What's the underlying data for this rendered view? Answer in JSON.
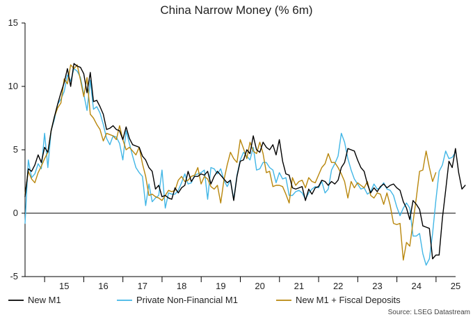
{
  "chart_data": {
    "type": "line",
    "title": "China Narrow Money (% 6m)",
    "xlabel": "",
    "ylabel": "",
    "x_start": 2014.5,
    "x_step": 0.0833,
    "xlim": [
      2014.5,
      2025.5
    ],
    "ylim": [
      -5,
      15
    ],
    "yticks": [
      -5,
      0,
      5,
      10,
      15
    ],
    "xtick_labels": [
      "15",
      "16",
      "17",
      "18",
      "19",
      "20",
      "21",
      "22",
      "23",
      "24",
      "25"
    ],
    "grid": false,
    "legend_position": "bottom",
    "source": "Source: LSEG Datastream",
    "series": [
      {
        "name": "New M1",
        "color": "#000000",
        "values": [
          1.3,
          3.5,
          3.3,
          3.8,
          4.6,
          4.0,
          5.2,
          4.8,
          6.5,
          7.6,
          8.6,
          9.5,
          10.3,
          11.4,
          10.0,
          11.8,
          11.6,
          11.5,
          11.0,
          9.5,
          11.1,
          8.8,
          8.9,
          8.4,
          7.8,
          6.6,
          6.7,
          6.9,
          6.6,
          6.5,
          5.8,
          6.8,
          5.9,
          5.4,
          5.3,
          5.2,
          4.5,
          4.2,
          3.6,
          3.3,
          1.9,
          2.2,
          1.3,
          1.4,
          1.2,
          1.1,
          2.0,
          1.6,
          2.0,
          2.2,
          3.3,
          2.5,
          2.9,
          2.9,
          3.1,
          3.0,
          3.3,
          2.3,
          2.9,
          3.3,
          3.0,
          2.7,
          2.4,
          2.6,
          1.0,
          2.9,
          4.1,
          4.2,
          5.0,
          4.7,
          6.1,
          5.0,
          4.8,
          5.6,
          5.2,
          5.0,
          5.4,
          4.6,
          5.8,
          4.1,
          3.1,
          3.0,
          2.0,
          1.9,
          2.0,
          2.1,
          1.0,
          1.9,
          1.5,
          2.0,
          2.1,
          2.6,
          2.5,
          2.2,
          2.5,
          2.3,
          2.6,
          3.6,
          4.0,
          5.1,
          5.0,
          4.9,
          4.2,
          3.6,
          3.3,
          2.3,
          1.6,
          2.0,
          1.7,
          2.1,
          2.3,
          2.0,
          2.2,
          2.3,
          2.0,
          1.8,
          0.9,
          0.4,
          -0.5,
          1.0,
          0.7,
          0.3,
          -1.0,
          -1.1,
          -1.2,
          -3.6,
          -3.3,
          -3.3,
          -0.4,
          1.8,
          4.1,
          3.6,
          5.1,
          3.2,
          1.9,
          2.2
        ]
      },
      {
        "name": "Private Non-Financial M1",
        "color": "#41b6e6",
        "values": [
          -0.8,
          4.2,
          2.8,
          3.1,
          3.9,
          3.5,
          6.3,
          3.6,
          6.5,
          7.4,
          8.6,
          9.0,
          9.6,
          10.9,
          10.4,
          11.4,
          11.2,
          10.7,
          9.4,
          8.1,
          10.5,
          8.2,
          8.4,
          7.9,
          7.0,
          5.9,
          5.4,
          6.1,
          6.0,
          5.5,
          4.2,
          6.5,
          5.5,
          4.5,
          3.6,
          3.2,
          2.9,
          0.6,
          2.3,
          0.9,
          1.2,
          1.4,
          3.4,
          0.4,
          1.6,
          1.5,
          1.5,
          1.8,
          2.4,
          3.1,
          2.3,
          2.4,
          3.0,
          3.1,
          3.2,
          3.4,
          1.1,
          3.6,
          3.5,
          3.1,
          3.5,
          2.6,
          2.1,
          2.6,
          1.1,
          3.0,
          4.2,
          4.8,
          4.5,
          4.2,
          5.2,
          3.4,
          3.5,
          4.0,
          4.0,
          3.6,
          3.4,
          2.4,
          3.2,
          2.7,
          2.8,
          1.4,
          1.4,
          1.7,
          1.8,
          1.6,
          1.1,
          1.6,
          1.9,
          2.1,
          2.0,
          2.5,
          1.6,
          1.9,
          3.4,
          3.9,
          4.5,
          6.3,
          5.6,
          4.3,
          3.4,
          2.7,
          2.3,
          1.9,
          2.0,
          1.5,
          1.7,
          2.3,
          1.9,
          2.0,
          2.4,
          1.9,
          1.8,
          1.4,
          0.5,
          -0.2,
          0.4,
          0.8,
          0.4,
          -1.8,
          -1.8,
          -1.6,
          -3.2,
          -4.1,
          -3.6,
          -1.6,
          1.0,
          3.3,
          3.8,
          4.9,
          4.3,
          4.4,
          4.8
        ]
      },
      {
        "name": "New M1 + Fiscal Deposits",
        "color": "#b8860b",
        "values": [
          1.5,
          3.3,
          2.7,
          2.4,
          3.2,
          3.7,
          4.3,
          4.8,
          6.5,
          7.6,
          8.3,
          8.7,
          10.6,
          10.2,
          11.7,
          11.4,
          11.7,
          10.5,
          9.2,
          10.7,
          7.8,
          7.5,
          7.0,
          6.6,
          5.7,
          6.3,
          6.2,
          6.1,
          5.8,
          6.9,
          5.8,
          5.0,
          5.2,
          4.9,
          4.6,
          5.2,
          3.9,
          2.9,
          1.4,
          1.5,
          1.3,
          1.2,
          1.0,
          1.4,
          1.8,
          1.7,
          1.8,
          2.6,
          2.9,
          2.5,
          2.6,
          2.9,
          3.0,
          3.6,
          2.3,
          2.9,
          2.7,
          2.1,
          1.9,
          2.2,
          0.8,
          2.6,
          3.8,
          4.8,
          4.3,
          4.0,
          5.8,
          5.1,
          4.3,
          5.6,
          4.9,
          4.7,
          5.6,
          4.7,
          3.2,
          3.3,
          2.1,
          2.2,
          2.2,
          2.1,
          1.5,
          0.8,
          2.8,
          2.2,
          2.5,
          2.6,
          2.0,
          2.8,
          2.5,
          2.4,
          3.0,
          3.6,
          3.9,
          4.7,
          4.0,
          4.0,
          3.6,
          3.1,
          2.5,
          1.2,
          2.5,
          2.0,
          2.4,
          2.2,
          2.0,
          2.5,
          1.4,
          1.2,
          1.6,
          1.5,
          0.7,
          1.6,
          0.6,
          -0.8,
          -0.9,
          -0.8,
          -3.7,
          -2.3,
          -2.6,
          -0.7,
          1.2,
          3.3,
          3.4,
          4.9,
          3.6,
          2.5,
          3.2
        ]
      }
    ]
  }
}
